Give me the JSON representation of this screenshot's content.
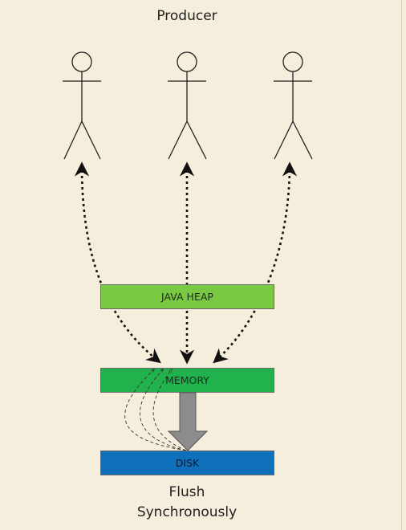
{
  "title": "Producer",
  "figures": [
    {
      "name": "producer-figure-1"
    },
    {
      "name": "producer-figure-2"
    },
    {
      "name": "producer-figure-3"
    }
  ],
  "bars": {
    "java_heap": "JAVA HEAP",
    "memory": "MEMORY",
    "disk": "DISK"
  },
  "caption": {
    "line1": "Flush",
    "line2": "Synchronously"
  },
  "colors": {
    "background": "#f6eedc",
    "java_heap": "#7ac943",
    "memory": "#21b14d",
    "disk": "#0e6fba",
    "flush_arrow": "#8c8c8c",
    "lines": "#111111"
  }
}
